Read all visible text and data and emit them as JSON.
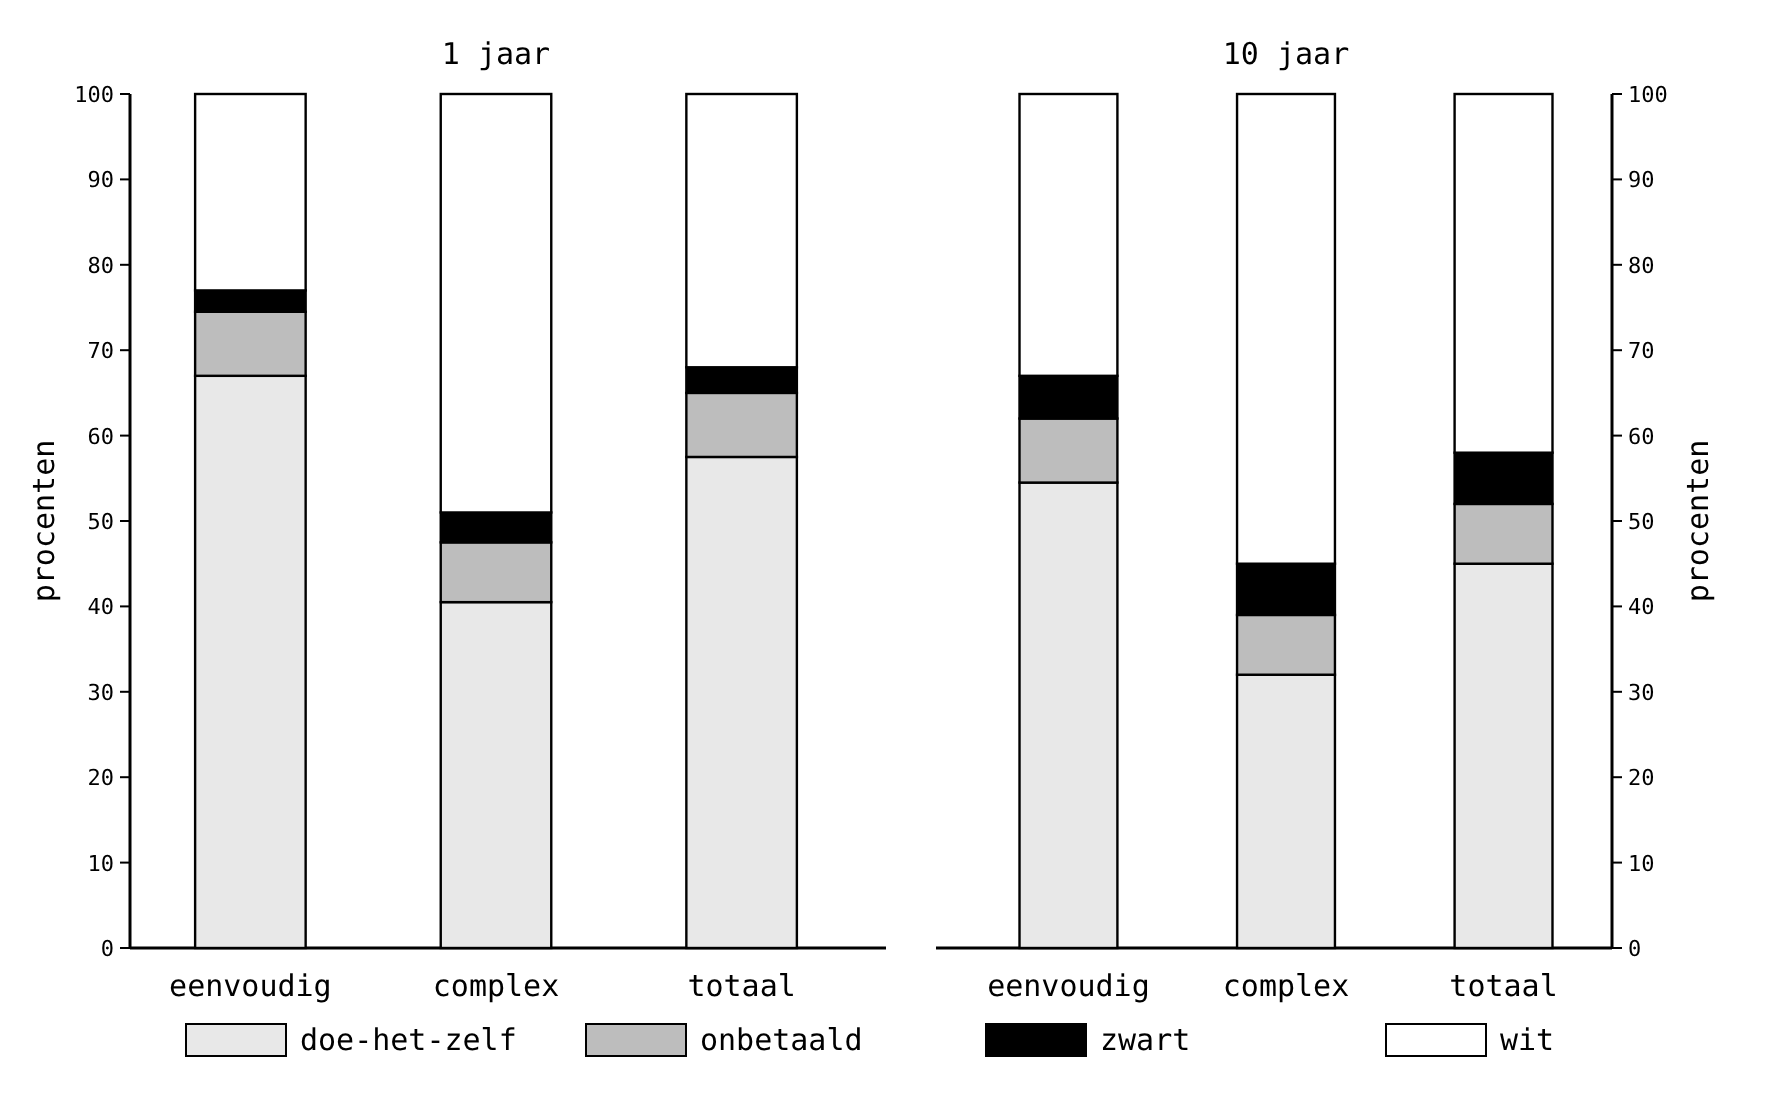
{
  "chart_data": [
    {
      "type": "bar",
      "title": "1 jaar",
      "stacked": true,
      "categories": [
        "eenvoudig",
        "complex",
        "totaal"
      ],
      "ylabel": "procenten",
      "ylim": [
        0,
        100
      ],
      "yticks": [
        0,
        10,
        20,
        30,
        40,
        50,
        60,
        70,
        80,
        90,
        100
      ],
      "legend": "bottom",
      "series": [
        {
          "name": "doe-het-zelf",
          "color": "#e8e8e8",
          "values": [
            67,
            40.5,
            57.5
          ]
        },
        {
          "name": "onbetaald",
          "color": "#bdbdbd",
          "values": [
            7.5,
            7,
            7.5
          ]
        },
        {
          "name": "zwart",
          "color": "#000000",
          "values": [
            2.5,
            3.5,
            3
          ]
        },
        {
          "name": "wit",
          "color": "#ffffff",
          "values": [
            23,
            49,
            32
          ]
        }
      ]
    },
    {
      "type": "bar",
      "title": "10 jaar",
      "stacked": true,
      "categories": [
        "eenvoudig",
        "complex",
        "totaal"
      ],
      "y2label": "procenten",
      "y2lim": [
        0,
        100
      ],
      "y2ticks": [
        0,
        10,
        20,
        30,
        40,
        50,
        60,
        70,
        80,
        90,
        100
      ],
      "series": [
        {
          "axis": "y2",
          "color": "#e8e8e8",
          "values": [
            54.5,
            32,
            45
          ]
        },
        {
          "axis": "y2",
          "color": "#bdbdbd",
          "values": [
            7.5,
            7,
            7
          ]
        },
        {
          "axis": "y2",
          "color": "#000000",
          "values": [
            5,
            6,
            6
          ]
        },
        {
          "axis": "y2",
          "color": "#ffffff",
          "values": [
            33,
            55,
            42
          ]
        }
      ]
    }
  ]
}
